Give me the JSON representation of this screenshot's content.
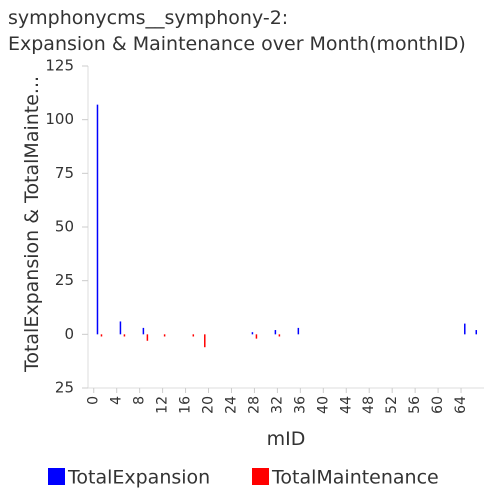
{
  "chart_data": {
    "type": "bar",
    "title": [
      "symphonycms__symphony-2:",
      "Expansion & Maintenance over Month(monthID)"
    ],
    "x_label": "mID",
    "y_label": "TotalExpansion & TotalMainte...",
    "x": [
      1,
      5,
      9,
      12,
      17,
      19,
      28,
      32,
      36,
      65,
      67
    ],
    "series": [
      {
        "name": "TotalExpansion",
        "color": "#0000ff",
        "values": [
          107,
          6,
          3,
          0,
          0,
          0,
          1,
          2,
          3,
          5,
          2
        ]
      },
      {
        "name": "TotalMaintenance",
        "color": "#ff0000",
        "values": [
          -1,
          -1,
          -3,
          -1,
          -1,
          -6,
          -2,
          -1,
          0,
          0,
          0
        ]
      }
    ],
    "xlim": [
      -1,
      68
    ],
    "xticks": [
      0,
      4,
      8,
      12,
      16,
      20,
      24,
      28,
      32,
      36,
      40,
      44,
      48,
      52,
      56,
      60,
      64
    ],
    "ylim": [
      -25,
      125
    ],
    "yticks": [
      {
        "value": -25,
        "label": "25"
      },
      0,
      25,
      50,
      75,
      100,
      125
    ],
    "legend": "bottom"
  }
}
